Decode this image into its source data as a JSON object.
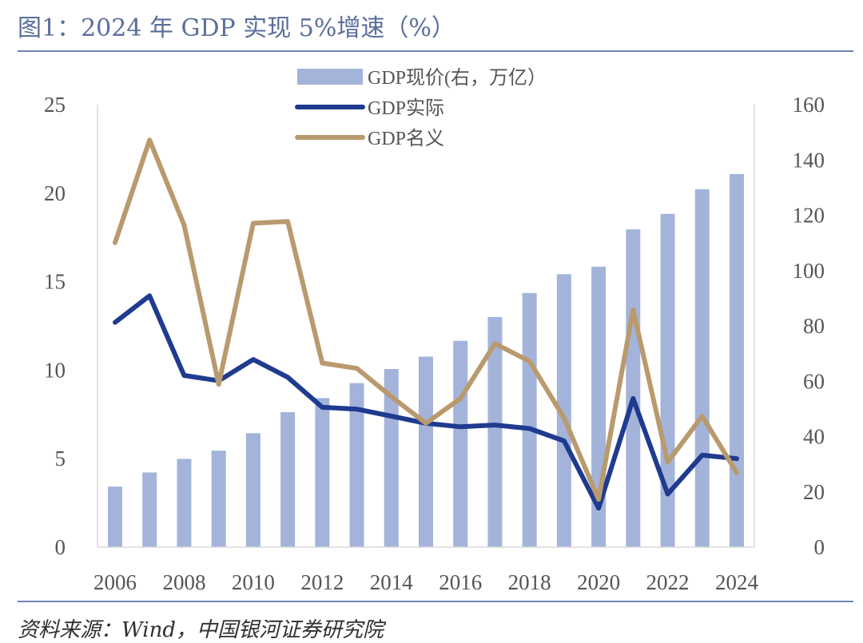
{
  "title": "图1：2024 年 GDP 实现 5%增速（%）",
  "source": "资料来源：Wind，中国银河证券研究院",
  "colors": {
    "title": "#5a6e9c",
    "rule": "#6f83b8",
    "bar": "#a3b3da",
    "real_line": "#1f3b8f",
    "nominal_line": "#b99a6e"
  },
  "chart_data": {
    "type": "bar",
    "x": [
      2006,
      2007,
      2008,
      2009,
      2010,
      2011,
      2012,
      2013,
      2014,
      2015,
      2016,
      2017,
      2018,
      2019,
      2020,
      2021,
      2022,
      2023,
      2024
    ],
    "x_tick_labels": [
      "2006",
      "2008",
      "2010",
      "2012",
      "2014",
      "2016",
      "2018",
      "2020",
      "2022",
      "2024"
    ],
    "left_axis": {
      "ylim": [
        0,
        25
      ],
      "ticks": [
        "0",
        "5",
        "10",
        "15",
        "20",
        "25"
      ]
    },
    "right_axis": {
      "ylim": [
        0,
        160
      ],
      "ticks": [
        "0",
        "20",
        "40",
        "60",
        "80",
        "100",
        "120",
        "140",
        "160"
      ]
    },
    "series": [
      {
        "name": "GDP现价(右，万亿）",
        "type": "bar",
        "axis": "right",
        "values": [
          21.9,
          27.0,
          31.9,
          34.9,
          41.2,
          48.8,
          53.9,
          59.3,
          64.4,
          68.9,
          74.6,
          83.2,
          91.9,
          98.7,
          101.4,
          114.9,
          120.5,
          129.4,
          134.9
        ]
      },
      {
        "name": "GDP实际",
        "type": "line",
        "axis": "left",
        "values": [
          12.7,
          14.2,
          9.7,
          9.4,
          10.6,
          9.6,
          7.9,
          7.8,
          7.4,
          7.0,
          6.8,
          6.9,
          6.7,
          6.0,
          2.2,
          8.4,
          3.0,
          5.2,
          5.0
        ]
      },
      {
        "name": "GDP名义",
        "type": "line",
        "axis": "left",
        "values": [
          17.2,
          23.0,
          18.2,
          9.2,
          18.3,
          18.4,
          10.4,
          10.1,
          8.5,
          7.0,
          8.4,
          11.5,
          10.5,
          7.3,
          2.7,
          13.4,
          4.8,
          7.4,
          4.2
        ]
      }
    ],
    "legend_position": "top-center",
    "grid": false
  }
}
